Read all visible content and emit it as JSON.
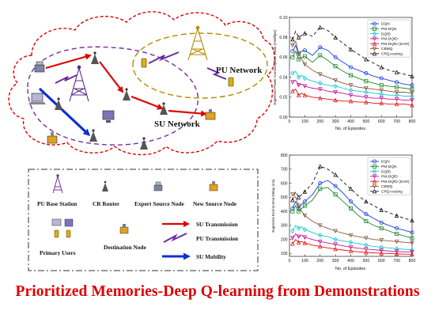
{
  "network": {
    "pu_label": "PU Network",
    "su_label": "SU Network"
  },
  "legend": {
    "pu_base_station": "PU Base Station",
    "cr_router": "CR Router",
    "expert_source_node": "Expert Source Node",
    "new_source_node": "New Source Node",
    "su_transmission": "SU Transmission",
    "primary_users": "Primary Users",
    "destination_node": "Destination Node",
    "pu_transmission": "PU Transmission",
    "su_mobility": "SU Mobility"
  },
  "caption": "Prioritized Memories-Deep Q-learning from Demonstrations",
  "colors": {
    "caption": "#e00000",
    "su_transmission": "#e00000",
    "pu_transmission": "#6a2ea0",
    "su_mobility": "#1030d0",
    "pu_boundary": "#b58a00",
    "su_boundary": "#7a2ea0"
  },
  "chart_data": [
    {
      "type": "line",
      "xlabel": "No. of Episodes",
      "ylabel": "Expected Power Consumption Ratio (mW/bps)",
      "xlim": [
        0,
        800
      ],
      "ylim": [
        0.0,
        0.1
      ],
      "xticks": [
        0,
        100,
        200,
        300,
        400,
        500,
        600,
        700,
        800
      ],
      "yticks": [
        0.0,
        0.02,
        0.04,
        0.06,
        0.08,
        0.1
      ],
      "yticklabels": [
        "0.00",
        "0.02",
        "0.04",
        "0.06",
        "0.08",
        "0.10"
      ],
      "legend_position": "top-right",
      "series": [
        {
          "name": "DQN",
          "color": "#1a3fe0",
          "marker": "o",
          "dash": "",
          "x": [
            20,
            40,
            60,
            80,
            100,
            150,
            200,
            250,
            300,
            350,
            400,
            450,
            500,
            550,
            600,
            650,
            700,
            750,
            800
          ],
          "y": [
            0.066,
            0.072,
            0.063,
            0.066,
            0.067,
            0.062,
            0.07,
            0.067,
            0.06,
            0.055,
            0.05,
            0.047,
            0.044,
            0.041,
            0.039,
            0.037,
            0.035,
            0.033,
            0.032
          ]
        },
        {
          "name": "PM-DQN",
          "color": "#1f8a2a",
          "marker": "s",
          "dash": "",
          "x": [
            20,
            40,
            60,
            80,
            100,
            150,
            200,
            250,
            300,
            350,
            400,
            450,
            500,
            550,
            600,
            650,
            700,
            750,
            800
          ],
          "y": [
            0.06,
            0.066,
            0.058,
            0.06,
            0.061,
            0.055,
            0.062,
            0.057,
            0.051,
            0.046,
            0.042,
            0.039,
            0.036,
            0.034,
            0.032,
            0.031,
            0.03,
            0.029,
            0.028
          ]
        },
        {
          "name": "DQfD",
          "color": "#18c8d8",
          "marker": "d",
          "dash": "",
          "x": [
            20,
            40,
            60,
            80,
            100,
            150,
            200,
            250,
            300,
            350,
            400,
            450,
            500,
            550,
            600,
            650,
            700,
            750,
            800
          ],
          "y": [
            0.044,
            0.046,
            0.04,
            0.042,
            0.039,
            0.036,
            0.034,
            0.032,
            0.031,
            0.029,
            0.027,
            0.026,
            0.025,
            0.024,
            0.023,
            0.022,
            0.022,
            0.021,
            0.021
          ]
        },
        {
          "name": "PM-DQfD",
          "color": "#c8129a",
          "marker": "v",
          "dash": "",
          "x": [
            20,
            40,
            60,
            80,
            100,
            150,
            200,
            250,
            300,
            350,
            400,
            450,
            500,
            550,
            600,
            650,
            700,
            750,
            800
          ],
          "y": [
            0.035,
            0.037,
            0.032,
            0.033,
            0.031,
            0.029,
            0.028,
            0.026,
            0.025,
            0.024,
            0.022,
            0.021,
            0.02,
            0.019,
            0.019,
            0.018,
            0.018,
            0.017,
            0.017
          ]
        },
        {
          "name": "PM-DQfD (DAR)",
          "color": "#e01010",
          "marker": "^",
          "dash": "",
          "x": [
            20,
            40,
            60,
            80,
            100,
            150,
            200,
            250,
            300,
            350,
            400,
            450,
            500,
            550,
            600,
            650,
            700,
            750,
            800
          ],
          "y": [
            0.026,
            0.028,
            0.022,
            0.024,
            0.022,
            0.02,
            0.019,
            0.018,
            0.017,
            0.016,
            0.016,
            0.015,
            0.015,
            0.014,
            0.014,
            0.013,
            0.013,
            0.013,
            0.012
          ]
        },
        {
          "name": "CBMQ",
          "color": "#8a5a3a",
          "marker": "v",
          "dash": "",
          "x": [
            20,
            40,
            60,
            80,
            100,
            150,
            200,
            250,
            300,
            350,
            400,
            450,
            500,
            550,
            600,
            650,
            700,
            750,
            800
          ],
          "y": [
            0.072,
            0.076,
            0.064,
            0.058,
            0.053,
            0.047,
            0.043,
            0.04,
            0.037,
            0.034,
            0.032,
            0.03,
            0.029,
            0.028,
            0.027,
            0.026,
            0.025,
            0.025,
            0.024
          ]
        },
        {
          "name": "CRQ-routing",
          "color": "#111111",
          "marker": "^",
          "dash": "4,3",
          "x": [
            20,
            40,
            60,
            80,
            100,
            150,
            200,
            250,
            300,
            350,
            400,
            450,
            500,
            550,
            600,
            650,
            700,
            750,
            800
          ],
          "y": [
            0.078,
            0.086,
            0.08,
            0.082,
            0.084,
            0.081,
            0.09,
            0.087,
            0.08,
            0.074,
            0.068,
            0.063,
            0.058,
            0.054,
            0.05,
            0.047,
            0.045,
            0.043,
            0.041
          ]
        }
      ]
    },
    {
      "type": "line",
      "xlabel": "No. of Episodes",
      "ylabel": "Expected End-to-End Delay (ms)",
      "xlim": [
        0,
        800
      ],
      "ylim": [
        80,
        800
      ],
      "xticks": [
        0,
        100,
        200,
        300,
        400,
        500,
        600,
        700,
        800
      ],
      "yticks": [
        100,
        200,
        300,
        400,
        500,
        600,
        700,
        800
      ],
      "yticklabels": [
        "100",
        "200",
        "300",
        "400",
        "500",
        "600",
        "700",
        "800"
      ],
      "legend_position": "top-right",
      "series": [
        {
          "name": "DQN",
          "color": "#1a3fe0",
          "marker": "o",
          "dash": "",
          "x": [
            20,
            40,
            60,
            80,
            100,
            150,
            200,
            250,
            300,
            350,
            400,
            450,
            500,
            550,
            600,
            650,
            700,
            750,
            800
          ],
          "y": [
            420,
            470,
            420,
            450,
            470,
            520,
            600,
            620,
            580,
            530,
            470,
            420,
            380,
            350,
            320,
            300,
            280,
            265,
            250
          ]
        },
        {
          "name": "PM-DQN",
          "color": "#1f8a2a",
          "marker": "s",
          "dash": "",
          "x": [
            20,
            40,
            60,
            80,
            100,
            150,
            200,
            250,
            300,
            350,
            400,
            450,
            500,
            550,
            600,
            650,
            700,
            750,
            800
          ],
          "y": [
            400,
            440,
            400,
            420,
            440,
            480,
            560,
            570,
            520,
            470,
            420,
            370,
            330,
            300,
            280,
            260,
            240,
            225,
            210
          ]
        },
        {
          "name": "DQfD",
          "color": "#18c8d8",
          "marker": "d",
          "dash": "",
          "x": [
            20,
            40,
            60,
            80,
            100,
            150,
            200,
            250,
            300,
            350,
            400,
            450,
            500,
            550,
            600,
            650,
            700,
            750,
            800
          ],
          "y": [
            260,
            300,
            280,
            290,
            270,
            250,
            230,
            220,
            200,
            190,
            180,
            170,
            160,
            150,
            145,
            140,
            135,
            130,
            125
          ]
        },
        {
          "name": "PM-DQfD",
          "color": "#c8129a",
          "marker": "v",
          "dash": "",
          "x": [
            20,
            40,
            60,
            80,
            100,
            150,
            200,
            250,
            300,
            350,
            400,
            450,
            500,
            550,
            600,
            650,
            700,
            750,
            800
          ],
          "y": [
            210,
            240,
            220,
            230,
            215,
            200,
            185,
            175,
            165,
            155,
            145,
            138,
            132,
            127,
            122,
            118,
            115,
            112,
            110
          ]
        },
        {
          "name": "PM-DQfD (DAR)",
          "color": "#e01010",
          "marker": "^",
          "dash": "",
          "x": [
            20,
            40,
            60,
            80,
            100,
            150,
            200,
            250,
            300,
            350,
            400,
            450,
            500,
            550,
            600,
            650,
            700,
            750,
            800
          ],
          "y": [
            170,
            200,
            180,
            185,
            175,
            160,
            150,
            140,
            132,
            125,
            118,
            112,
            108,
            105,
            102,
            100,
            98,
            96,
            95
          ]
        },
        {
          "name": "CBMQ",
          "color": "#8a5a3a",
          "marker": "v",
          "dash": "",
          "x": [
            20,
            40,
            60,
            80,
            100,
            150,
            200,
            250,
            300,
            350,
            400,
            450,
            500,
            550,
            600,
            650,
            700,
            750,
            800
          ],
          "y": [
            520,
            500,
            440,
            400,
            370,
            330,
            300,
            280,
            260,
            245,
            230,
            220,
            210,
            200,
            195,
            190,
            185,
            180,
            175
          ]
        },
        {
          "name": "CRQ-routing",
          "color": "#111111",
          "marker": "^",
          "dash": "4,3",
          "x": [
            20,
            40,
            60,
            80,
            100,
            150,
            200,
            250,
            300,
            350,
            400,
            450,
            500,
            550,
            600,
            650,
            700,
            750,
            800
          ],
          "y": [
            480,
            540,
            500,
            520,
            540,
            600,
            720,
            700,
            660,
            610,
            560,
            510,
            470,
            440,
            410,
            390,
            370,
            350,
            335
          ]
        }
      ]
    }
  ]
}
